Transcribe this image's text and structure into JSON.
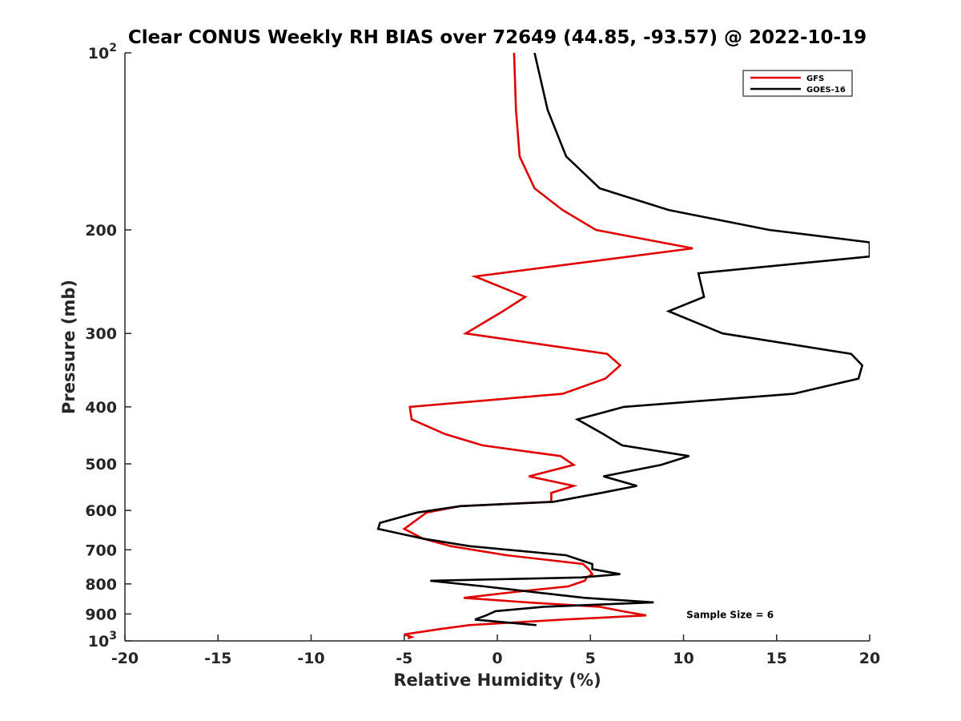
{
  "chart_data": {
    "type": "line",
    "title": "Clear CONUS Weekly RH BIAS over 72649 (44.85, -93.57) @ 2022-10-19",
    "xlabel": "Relative Humidity (%)",
    "ylabel": "Pressure (mb)",
    "xlim": [
      -20,
      20
    ],
    "ylim": [
      100,
      1000
    ],
    "y_scale": "log",
    "y_reversed": true,
    "grid": false,
    "legend_position": "top-right",
    "x_ticks": [
      "-20",
      "-15",
      "-10",
      "-5",
      "0",
      "5",
      "10",
      "15",
      "20"
    ],
    "y_ticks": [
      {
        "value": 100,
        "base": "10",
        "exp": "2"
      },
      {
        "value": 200,
        "label": "200"
      },
      {
        "value": 300,
        "label": "300"
      },
      {
        "value": 400,
        "label": "400"
      },
      {
        "value": 500,
        "label": "500"
      },
      {
        "value": 600,
        "label": "600"
      },
      {
        "value": 700,
        "label": "700"
      },
      {
        "value": 800,
        "label": "800"
      },
      {
        "value": 900,
        "label": "900"
      },
      {
        "value": 1000,
        "base": "10",
        "exp": "3"
      }
    ],
    "series": [
      {
        "name": "GFS",
        "color": "#e00000",
        "points": [
          [
            0.9,
            100
          ],
          [
            1.0,
            125
          ],
          [
            1.2,
            150
          ],
          [
            2.0,
            170
          ],
          [
            3.5,
            185
          ],
          [
            5.3,
            200
          ],
          [
            10.5,
            215
          ],
          [
            -1.2,
            240
          ],
          [
            1.5,
            260
          ],
          [
            0.3,
            275
          ],
          [
            -1.7,
            300
          ],
          [
            5.9,
            325
          ],
          [
            6.6,
            340
          ],
          [
            5.8,
            358
          ],
          [
            3.5,
            380
          ],
          [
            -4.7,
            400
          ],
          [
            -4.6,
            420
          ],
          [
            -2.8,
            445
          ],
          [
            -0.8,
            465
          ],
          [
            3.4,
            485
          ],
          [
            4.1,
            502
          ],
          [
            1.7,
            525
          ],
          [
            4.1,
            545
          ],
          [
            2.9,
            560
          ],
          [
            2.9,
            580
          ],
          [
            -2.0,
            590
          ],
          [
            -3.8,
            605
          ],
          [
            -5.0,
            645
          ],
          [
            -4.0,
            670
          ],
          [
            -2.5,
            690
          ],
          [
            0.5,
            715
          ],
          [
            4.6,
            740
          ],
          [
            4.9,
            755
          ],
          [
            5.1,
            770
          ],
          [
            4.8,
            780
          ],
          [
            4.7,
            790
          ],
          [
            3.8,
            808
          ],
          [
            1.0,
            825
          ],
          [
            -1.8,
            845
          ],
          [
            1.6,
            860
          ],
          [
            5.5,
            875
          ],
          [
            6.7,
            890
          ],
          [
            8.0,
            905
          ],
          [
            3.5,
            920
          ],
          [
            -1.5,
            940
          ],
          [
            -3.1,
            955
          ],
          [
            -5.0,
            975
          ],
          [
            -4.6,
            985
          ],
          [
            -4.8,
            990
          ]
        ]
      },
      {
        "name": "GOES-16",
        "color": "#000000",
        "points": [
          [
            2.0,
            100
          ],
          [
            2.7,
            125
          ],
          [
            3.7,
            150
          ],
          [
            5.5,
            170
          ],
          [
            9.2,
            185
          ],
          [
            14.6,
            200
          ],
          [
            20.0,
            210
          ],
          [
            20.0,
            222
          ],
          [
            10.8,
            237
          ],
          [
            11.1,
            260
          ],
          [
            9.2,
            275
          ],
          [
            12.1,
            300
          ],
          [
            19.0,
            325
          ],
          [
            19.6,
            340
          ],
          [
            19.4,
            358
          ],
          [
            15.9,
            380
          ],
          [
            6.8,
            400
          ],
          [
            4.3,
            420
          ],
          [
            5.7,
            445
          ],
          [
            6.7,
            465
          ],
          [
            10.3,
            485
          ],
          [
            8.8,
            502
          ],
          [
            5.7,
            525
          ],
          [
            7.5,
            545
          ],
          [
            5.6,
            560
          ],
          [
            3.0,
            580
          ],
          [
            -2.0,
            590
          ],
          [
            -4.3,
            605
          ],
          [
            -6.3,
            630
          ],
          [
            -6.4,
            645
          ],
          [
            -4.0,
            670
          ],
          [
            -1.5,
            690
          ],
          [
            3.7,
            715
          ],
          [
            5.1,
            740
          ],
          [
            5.1,
            755
          ],
          [
            6.6,
            770
          ],
          [
            4.5,
            780
          ],
          [
            -3.6,
            790
          ],
          [
            -0.7,
            808
          ],
          [
            1.8,
            825
          ],
          [
            4.7,
            845
          ],
          [
            8.4,
            860
          ],
          [
            2.5,
            875
          ],
          [
            -0.1,
            890
          ],
          [
            -0.6,
            905
          ],
          [
            -1.2,
            920
          ],
          [
            2.1,
            940
          ]
        ]
      }
    ],
    "annotations": [
      {
        "text": "Sample Size = 6",
        "x": 12.5,
        "y": 900
      }
    ]
  }
}
